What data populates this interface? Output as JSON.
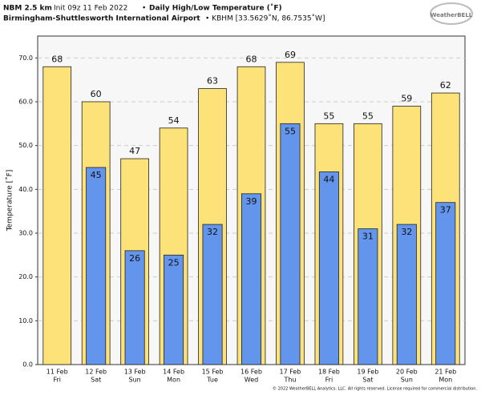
{
  "chart_data": {
    "type": "bar",
    "title": "NBM 2.5 km",
    "init": "Init 09z 11 Feb 2022",
    "bullet": "•",
    "title_main": "Daily High/Low Temperature (˚F)",
    "subtitle": "Birmingham-Shuttlesworth International Airport",
    "subtitle_detail": "• KBHM [33.5629˚N, 86.7535˚W]",
    "logo": "WeatherBELL",
    "footer": "© 2022 WeatherBELL Analytics, LLC. All rights reserved. License required for commercial distribution.",
    "ylabel": "Temperature [˚F]",
    "categories": [
      "11 Feb",
      "12 Feb",
      "13 Feb",
      "14 Feb",
      "15 Feb",
      "16 Feb",
      "17 Feb",
      "18 Feb",
      "19 Feb",
      "20 Feb",
      "21 Feb"
    ],
    "weekdays": [
      "Fri",
      "Sat",
      "Sun",
      "Mon",
      "Tue",
      "Wed",
      "Thu",
      "Fri",
      "Sat",
      "Sun",
      "Mon"
    ],
    "series": [
      {
        "name": "High",
        "color": "#fde27a",
        "values": [
          68,
          60,
          47,
          54,
          63,
          68,
          69,
          55,
          55,
          59,
          62
        ]
      },
      {
        "name": "Low",
        "color": "#6495ed",
        "values": [
          null,
          45,
          26,
          25,
          32,
          39,
          55,
          44,
          31,
          32,
          37
        ]
      }
    ],
    "ylim": [
      0,
      75
    ],
    "yticks": [
      {
        "value": 0,
        "label": "0.0"
      },
      {
        "value": 10,
        "label": "10.0"
      },
      {
        "value": 20,
        "label": "20.0"
      },
      {
        "value": 30,
        "label": "30.0"
      },
      {
        "value": 40,
        "label": "40.0"
      },
      {
        "value": 50,
        "label": "50.0"
      },
      {
        "value": 60,
        "label": "60.0"
      },
      {
        "value": 70,
        "label": "70.0"
      }
    ],
    "grid": true
  }
}
